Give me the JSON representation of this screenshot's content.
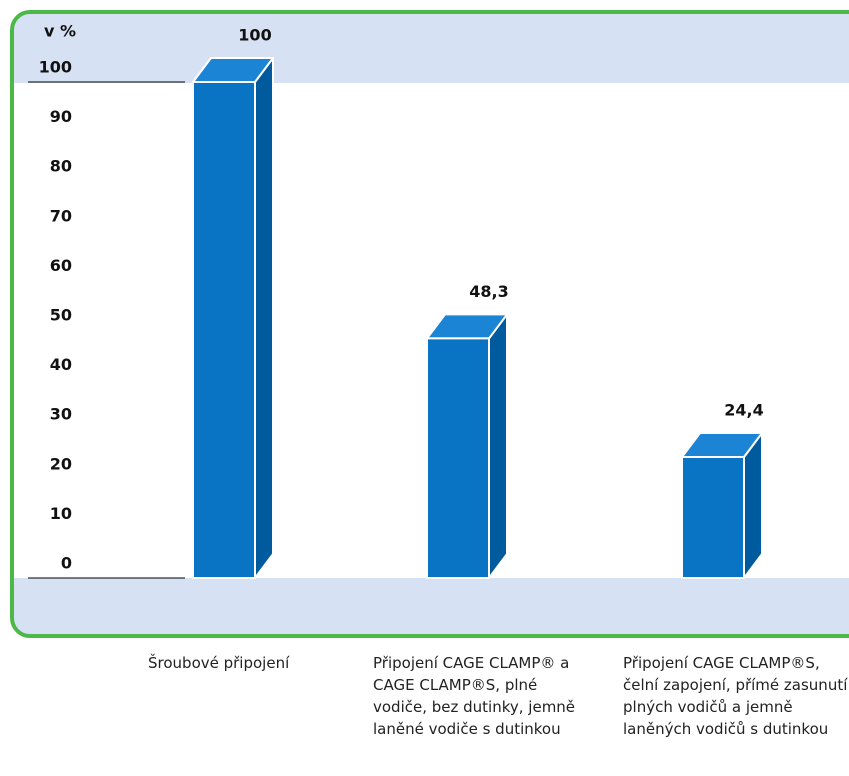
{
  "chart_data": {
    "type": "bar3d",
    "y_label": "v %",
    "categories": [
      "Šroubové připojení",
      "Připojení CAGE CLAMP® a CAGE CLAMP®S, plné vodiče, bez dutinky, jemně laněné vodiče s dutinkou",
      "Připojení CAGE CLAMP®S, čelní zapojení, přímé zasunutí plných vodičů a jemně laněných vodičů s dutinkou"
    ],
    "values": [
      100,
      48.3,
      24.4
    ],
    "value_labels": [
      "100",
      "48,3",
      "24,4"
    ],
    "color": "#0a74c4",
    "ylim": [
      0,
      100
    ],
    "yticks": [
      0,
      10,
      20,
      30,
      40,
      50,
      60,
      70,
      80,
      90,
      100
    ],
    "grid": false
  }
}
